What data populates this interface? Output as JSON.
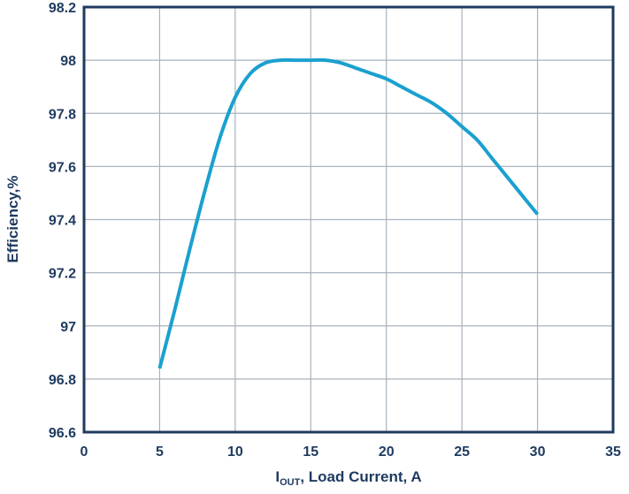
{
  "chart_data": {
    "type": "line",
    "title": "",
    "xlabel_parts": {
      "main": "I",
      "sub": "OUT",
      "rest": ", Load Current, A"
    },
    "ylabel": "Efficiency,%",
    "xlim": [
      0,
      35
    ],
    "ylim": [
      96.6,
      98.2
    ],
    "xticks": [
      "0",
      "5",
      "10",
      "15",
      "20",
      "25",
      "30",
      "35"
    ],
    "yticks": [
      "96.6",
      "96.8",
      "97",
      "97.2",
      "97.4",
      "97.6",
      "97.8",
      "98",
      "98.2"
    ],
    "grid": true,
    "series": [
      {
        "color": "#1aa0cf",
        "x": [
          5,
          6,
          7,
          8,
          9,
          10,
          11,
          12,
          13,
          14,
          15,
          16,
          17,
          18,
          19,
          20,
          21,
          22,
          23,
          24,
          25,
          26,
          27,
          28,
          29,
          30
        ],
        "y": [
          96.84,
          97.06,
          97.29,
          97.51,
          97.71,
          97.86,
          97.95,
          97.99,
          98.0,
          98.0,
          98.0,
          98.0,
          97.99,
          97.97,
          97.95,
          97.93,
          97.9,
          97.87,
          97.84,
          97.8,
          97.75,
          97.7,
          97.63,
          97.56,
          97.49,
          97.42
        ]
      }
    ],
    "colors": {
      "axis": "#1e3a5f",
      "grid": "#a9b3bd",
      "line": "#1aa0cf"
    }
  }
}
